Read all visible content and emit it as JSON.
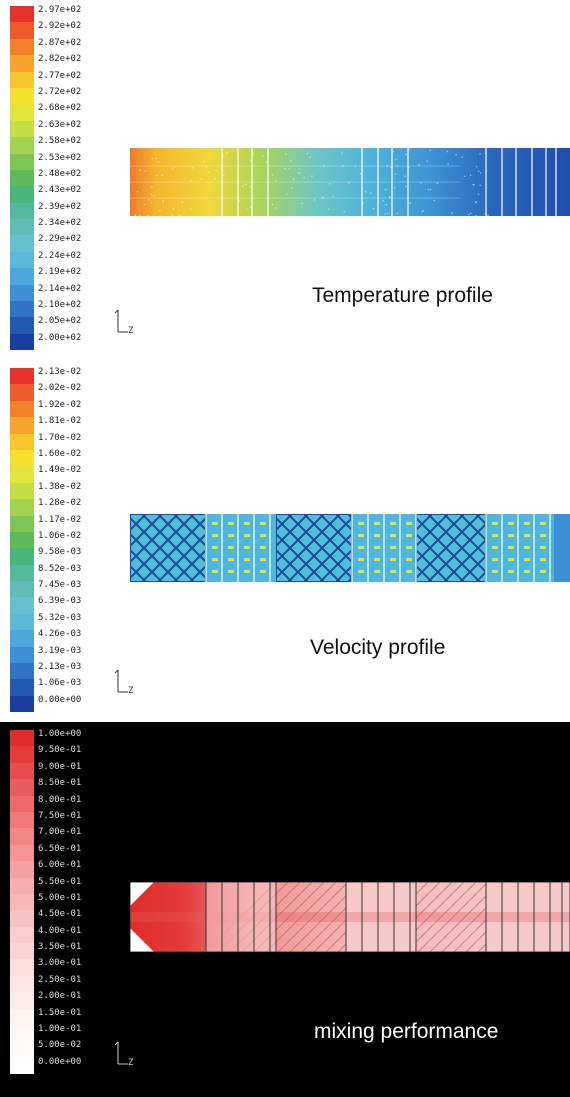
{
  "panels": [
    {
      "caption": "Temperature profile",
      "axis_label": "Z",
      "colorbar": {
        "ticks": [
          "2.97e+02",
          "2.92e+02",
          "2.87e+02",
          "2.82e+02",
          "2.77e+02",
          "2.72e+02",
          "2.68e+02",
          "2.63e+02",
          "2.58e+02",
          "2.53e+02",
          "2.48e+02",
          "2.43e+02",
          "2.39e+02",
          "2.34e+02",
          "2.29e+02",
          "2.24e+02",
          "2.19e+02",
          "2.14e+02",
          "2.10e+02",
          "2.05e+02",
          "2.00e+02"
        ],
        "colors": [
          "#e8312b",
          "#ef5a2a",
          "#f3802b",
          "#f7a32c",
          "#f9c62e",
          "#f5e12e",
          "#e3e63a",
          "#c6de45",
          "#a3d24e",
          "#7dc655",
          "#5fba5b",
          "#4bb579",
          "#53b89c",
          "#60bcb5",
          "#66bfcc",
          "#5cb7db",
          "#4ea6db",
          "#3e8fd4",
          "#2f74c5",
          "#2359b3",
          "#1a3f9c"
        ]
      },
      "field": "temperature"
    },
    {
      "caption": "Velocity profile",
      "axis_label": "Z",
      "colorbar": {
        "ticks": [
          "2.13e-02",
          "2.02e-02",
          "1.92e-02",
          "1.81e-02",
          "1.70e-02",
          "1.60e-02",
          "1.49e-02",
          "1.38e-02",
          "1.28e-02",
          "1.17e-02",
          "1.06e-02",
          "9.58e-03",
          "8.52e-03",
          "7.45e-03",
          "6.39e-03",
          "5.32e-03",
          "4.26e-03",
          "3.19e-03",
          "2.13e-03",
          "1.06e-03",
          "0.00e+00"
        ],
        "colors": [
          "#e8312b",
          "#ef5a2a",
          "#f3802b",
          "#f7a32c",
          "#f9c62e",
          "#f5e12e",
          "#e3e63a",
          "#c6de45",
          "#a3d24e",
          "#7dc655",
          "#5fba5b",
          "#4bb579",
          "#53b89c",
          "#60bcb5",
          "#66bfcc",
          "#5cb7db",
          "#4ea6db",
          "#3e8fd4",
          "#2f74c5",
          "#2359b3",
          "#1a3f9c"
        ]
      },
      "field": "velocity"
    },
    {
      "caption": "mixing performance",
      "axis_label": "Z",
      "colorbar": {
        "ticks": [
          "1.00e+00",
          "9.50e-01",
          "9.00e-01",
          "8.50e-01",
          "8.00e-01",
          "7.50e-01",
          "7.00e-01",
          "6.50e-01",
          "6.00e-01",
          "5.50e-01",
          "5.00e-01",
          "4.50e-01",
          "4.00e-01",
          "3.50e-01",
          "3.00e-01",
          "2.50e-01",
          "2.00e-01",
          "1.50e-01",
          "1.00e-01",
          "5.00e-02",
          "0.00e+00"
        ],
        "colors": [
          "#e32d2d",
          "#e63c3c",
          "#e94c4c",
          "#ec5b5b",
          "#ee6a6a",
          "#f07979",
          "#f28787",
          "#f49494",
          "#f5a1a1",
          "#f7adad",
          "#f8b8b8",
          "#f9c2c2",
          "#facccc",
          "#fbd5d5",
          "#fcdddd",
          "#fde5e5",
          "#fdecec",
          "#fef2f2",
          "#fef7f7",
          "#fffbfb",
          "#ffffff"
        ]
      },
      "field": "mixing"
    }
  ]
}
